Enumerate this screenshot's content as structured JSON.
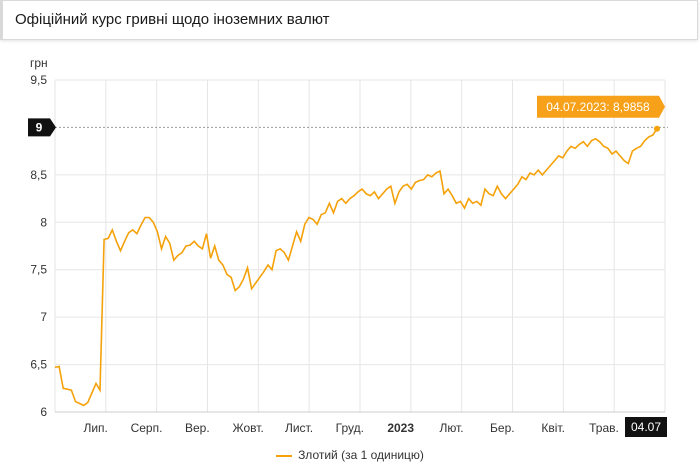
{
  "header": {
    "title": "Офіційний курс гривні щодо іноземних валют"
  },
  "chart_data": {
    "type": "line",
    "title": "Офіційний курс гривні щодо іноземних валют",
    "ylabel": "грн",
    "xlabel": "",
    "ylim": [
      6,
      9.5
    ],
    "yticks": [
      "6",
      "6,5",
      "7",
      "7,5",
      "8",
      "8,5",
      "9,5"
    ],
    "xticks": [
      "Лип.",
      "Серп.",
      "Вер.",
      "Жовт.",
      "Лист.",
      "Груд.",
      "2023",
      "Лют.",
      "Бер.",
      "Квіт.",
      "Трав."
    ],
    "grid": true,
    "legend_position": "bottom",
    "color": "#f5a20a",
    "series": [
      {
        "name": "Злотий (за 1 одиницю)",
        "points": [
          [
            0,
            6.47
          ],
          [
            1,
            6.48
          ],
          [
            2,
            6.25
          ],
          [
            3,
            6.24
          ],
          [
            4,
            6.23
          ],
          [
            5,
            6.11
          ],
          [
            6,
            6.09
          ],
          [
            7,
            6.07
          ],
          [
            8,
            6.1
          ],
          [
            9,
            6.2
          ],
          [
            10,
            6.3
          ],
          [
            11,
            6.23
          ],
          [
            12,
            7.82
          ],
          [
            13,
            7.83
          ],
          [
            14,
            7.92
          ],
          [
            15,
            7.8
          ],
          [
            16,
            7.7
          ],
          [
            17,
            7.8
          ],
          [
            18,
            7.89
          ],
          [
            19,
            7.92
          ],
          [
            20,
            7.88
          ],
          [
            21,
            7.97
          ],
          [
            22,
            8.05
          ],
          [
            23,
            8.05
          ],
          [
            24,
            8.0
          ],
          [
            25,
            7.9
          ],
          [
            26,
            7.72
          ],
          [
            27,
            7.85
          ],
          [
            28,
            7.78
          ],
          [
            29,
            7.6
          ],
          [
            30,
            7.65
          ],
          [
            31,
            7.68
          ],
          [
            32,
            7.75
          ],
          [
            33,
            7.76
          ],
          [
            34,
            7.8
          ],
          [
            35,
            7.75
          ],
          [
            36,
            7.72
          ],
          [
            37,
            7.88
          ],
          [
            38,
            7.62
          ],
          [
            39,
            7.75
          ],
          [
            40,
            7.6
          ],
          [
            41,
            7.55
          ],
          [
            42,
            7.45
          ],
          [
            43,
            7.42
          ],
          [
            44,
            7.28
          ],
          [
            45,
            7.32
          ],
          [
            46,
            7.4
          ],
          [
            47,
            7.52
          ],
          [
            48,
            7.3
          ],
          [
            49,
            7.36
          ],
          [
            50,
            7.42
          ],
          [
            51,
            7.48
          ],
          [
            52,
            7.55
          ],
          [
            53,
            7.5
          ],
          [
            54,
            7.7
          ],
          [
            55,
            7.72
          ],
          [
            56,
            7.68
          ],
          [
            57,
            7.6
          ],
          [
            58,
            7.75
          ],
          [
            59,
            7.9
          ],
          [
            60,
            7.8
          ],
          [
            61,
            7.98
          ],
          [
            62,
            8.05
          ],
          [
            63,
            8.03
          ],
          [
            64,
            7.98
          ],
          [
            65,
            8.08
          ],
          [
            66,
            8.1
          ],
          [
            67,
            8.2
          ],
          [
            68,
            8.1
          ],
          [
            69,
            8.22
          ],
          [
            70,
            8.25
          ],
          [
            71,
            8.2
          ],
          [
            72,
            8.25
          ],
          [
            73,
            8.28
          ],
          [
            74,
            8.32
          ],
          [
            75,
            8.35
          ],
          [
            76,
            8.3
          ],
          [
            77,
            8.28
          ],
          [
            78,
            8.32
          ],
          [
            79,
            8.25
          ],
          [
            80,
            8.3
          ],
          [
            81,
            8.35
          ],
          [
            82,
            8.38
          ],
          [
            83,
            8.2
          ],
          [
            84,
            8.32
          ],
          [
            85,
            8.38
          ],
          [
            86,
            8.4
          ],
          [
            87,
            8.35
          ],
          [
            88,
            8.42
          ],
          [
            89,
            8.44
          ],
          [
            90,
            8.45
          ],
          [
            91,
            8.5
          ],
          [
            92,
            8.48
          ],
          [
            93,
            8.52
          ],
          [
            94,
            8.54
          ],
          [
            95,
            8.3
          ],
          [
            96,
            8.35
          ],
          [
            97,
            8.28
          ],
          [
            98,
            8.2
          ],
          [
            99,
            8.22
          ],
          [
            100,
            8.15
          ],
          [
            101,
            8.25
          ],
          [
            102,
            8.2
          ],
          [
            103,
            8.22
          ],
          [
            104,
            8.18
          ],
          [
            105,
            8.35
          ],
          [
            106,
            8.3
          ],
          [
            107,
            8.28
          ],
          [
            108,
            8.38
          ],
          [
            109,
            8.3
          ],
          [
            110,
            8.25
          ],
          [
            111,
            8.3
          ],
          [
            112,
            8.35
          ],
          [
            113,
            8.4
          ],
          [
            114,
            8.48
          ],
          [
            115,
            8.45
          ],
          [
            116,
            8.52
          ],
          [
            117,
            8.5
          ],
          [
            118,
            8.55
          ],
          [
            119,
            8.5
          ],
          [
            120,
            8.55
          ],
          [
            121,
            8.6
          ],
          [
            122,
            8.65
          ],
          [
            123,
            8.7
          ],
          [
            124,
            8.68
          ],
          [
            125,
            8.75
          ],
          [
            126,
            8.8
          ],
          [
            127,
            8.78
          ],
          [
            128,
            8.82
          ],
          [
            129,
            8.85
          ],
          [
            130,
            8.8
          ],
          [
            131,
            8.86
          ],
          [
            132,
            8.88
          ],
          [
            133,
            8.85
          ],
          [
            134,
            8.8
          ],
          [
            135,
            8.78
          ],
          [
            136,
            8.72
          ],
          [
            137,
            8.75
          ],
          [
            138,
            8.7
          ],
          [
            139,
            8.65
          ],
          [
            140,
            8.62
          ],
          [
            141,
            8.75
          ],
          [
            142,
            8.78
          ],
          [
            143,
            8.8
          ],
          [
            144,
            8.86
          ],
          [
            145,
            8.9
          ],
          [
            146,
            8.92
          ],
          [
            147,
            8.9858
          ]
        ]
      }
    ],
    "highlight": {
      "label": "04.07.2023: 8,9858",
      "y_label": "9",
      "x_label": "04.07"
    }
  }
}
